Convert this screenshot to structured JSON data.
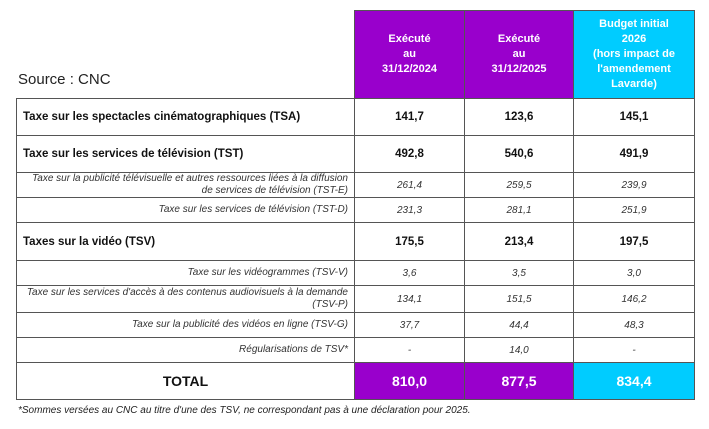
{
  "source": "Source : CNC",
  "colors": {
    "purple": "#9900cc",
    "cyan": "#00ccff"
  },
  "headers": [
    "Exécuté\nau\n31/12/2024",
    "Exécuté\nau\n31/12/2025",
    "Budget initial\n2026\n(hors impact de\nl'amendement\nLavarde)"
  ],
  "rows": [
    {
      "label": "Taxe sur les spectacles cinématographiques (TSA)",
      "values": [
        "141,7",
        "123,6",
        "145,1"
      ],
      "type": "main"
    },
    {
      "label": "Taxe sur les services de télévision (TST)",
      "values": [
        "492,8",
        "540,6",
        "491,9"
      ],
      "type": "main"
    },
    {
      "label": "Taxe sur la publicité télévisuelle et autres ressources liées à la diffusion de services de télévision (TST-E)",
      "values": [
        "261,4",
        "259,5",
        "239,9"
      ],
      "type": "sub"
    },
    {
      "label": "Taxe sur les services de télévision (TST-D)",
      "values": [
        "231,3",
        "281,1",
        "251,9"
      ],
      "type": "sub"
    },
    {
      "label": "Taxes sur la vidéo (TSV)",
      "values": [
        "175,5",
        "213,4",
        "197,5"
      ],
      "type": "main"
    },
    {
      "label": "Taxe sur les vidéogrammes (TSV-V)",
      "values": [
        "3,6",
        "3,5",
        "3,0"
      ],
      "type": "sub"
    },
    {
      "label": "Taxe sur les services d'accès à des contenus audiovisuels à la demande (TSV-P)",
      "values": [
        "134,1",
        "151,5",
        "146,2"
      ],
      "type": "sub"
    },
    {
      "label": "Taxe sur la publicité des vidéos en ligne (TSV-G)",
      "values": [
        "37,7",
        "44,4",
        "48,3"
      ],
      "type": "sub"
    },
    {
      "label": "Régularisations de TSV*",
      "values": [
        "-",
        "14,0",
        "-"
      ],
      "type": "sub"
    }
  ],
  "total": {
    "label": "TOTAL",
    "values": [
      "810,0",
      "877,5",
      "834,4"
    ]
  },
  "footnote": "*Sommes versées au CNC au titre d'une des TSV, ne correspondant pas à une déclaration pour 2025."
}
